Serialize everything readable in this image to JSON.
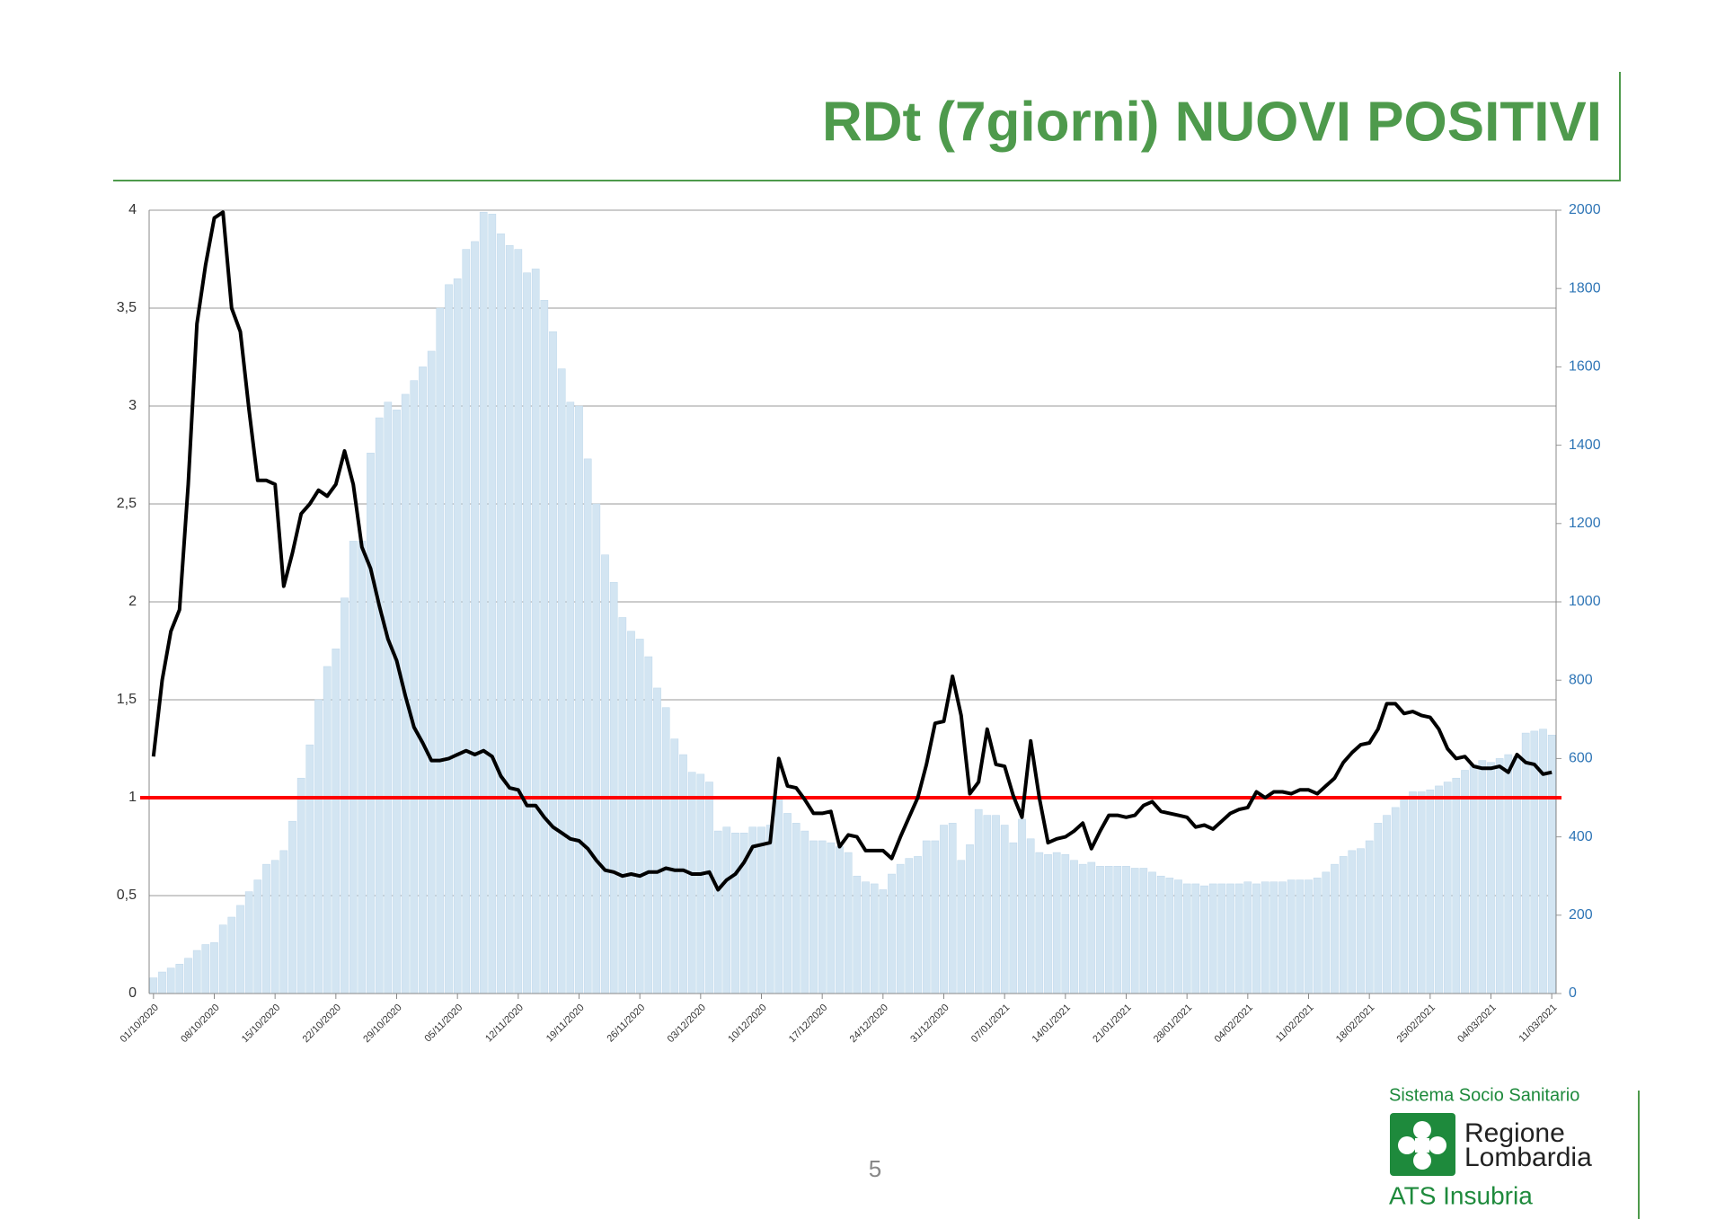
{
  "header": {
    "title": "RDt (7giorni) NUOVI POSITIVI"
  },
  "chart_data": {
    "type": "bar",
    "categories": [
      "01/10/2020",
      null,
      null,
      null,
      null,
      null,
      null,
      "08/10/2020",
      null,
      null,
      null,
      null,
      null,
      null,
      "15/10/2020",
      null,
      null,
      null,
      null,
      null,
      null,
      "22/10/2020",
      null,
      null,
      null,
      null,
      null,
      null,
      "29/10/2020",
      null,
      null,
      null,
      null,
      null,
      null,
      "05/11/2020",
      null,
      null,
      null,
      null,
      null,
      null,
      "12/11/2020",
      null,
      null,
      null,
      null,
      null,
      null,
      "19/11/2020",
      null,
      null,
      null,
      null,
      null,
      null,
      "26/11/2020",
      null,
      null,
      null,
      null,
      null,
      null,
      "03/12/2020",
      null,
      null,
      null,
      null,
      null,
      null,
      "10/12/2020",
      null,
      null,
      null,
      null,
      null,
      null,
      "17/12/2020",
      null,
      null,
      null,
      null,
      null,
      null,
      "24/12/2020",
      null,
      null,
      null,
      null,
      null,
      null,
      "31/12/2020",
      null,
      null,
      null,
      null,
      null,
      null,
      "07/01/2021",
      null,
      null,
      null,
      null,
      null,
      null,
      "14/01/2021",
      null,
      null,
      null,
      null,
      null,
      null,
      "21/01/2021",
      null,
      null,
      null,
      null,
      null,
      null,
      "28/01/2021",
      null,
      null,
      null,
      null,
      null,
      null,
      "04/02/2021",
      null,
      null,
      null,
      null,
      null,
      null,
      "11/02/2021",
      null,
      null,
      null,
      null,
      null,
      null,
      "18/02/2021",
      null,
      null,
      null,
      null,
      null,
      null,
      "25/02/2021",
      null,
      null,
      null,
      null,
      null,
      null,
      "04/03/2021",
      null,
      null,
      null,
      null,
      null,
      null,
      "11/03/2021"
    ],
    "series": [
      {
        "type": "bar",
        "axis": "y2",
        "color": "#d3e5f2",
        "values": [
          40,
          55,
          65,
          75,
          90,
          110,
          125,
          130,
          175,
          195,
          225,
          260,
          290,
          330,
          340,
          365,
          440,
          550,
          635,
          750,
          835,
          880,
          1010,
          1155,
          1155,
          1380,
          1470,
          1510,
          1490,
          1530,
          1565,
          1600,
          1640,
          1750,
          1810,
          1825,
          1900,
          1920,
          1995,
          1990,
          1940,
          1910,
          1900,
          1840,
          1850,
          1770,
          1690,
          1595,
          1510,
          1500,
          1365,
          1250,
          1120,
          1050,
          960,
          925,
          905,
          860,
          780,
          730,
          650,
          610,
          565,
          560,
          540,
          415,
          425,
          410,
          410,
          425,
          425,
          430,
          500,
          460,
          435,
          415,
          390,
          390,
          385,
          375,
          360,
          300,
          285,
          280,
          265,
          305,
          330,
          345,
          350,
          390,
          390,
          430,
          435,
          340,
          380,
          470,
          455,
          455,
          430,
          385,
          445,
          395,
          360,
          355,
          360,
          355,
          340,
          330,
          335,
          325,
          325,
          325,
          325,
          320,
          320,
          310,
          300,
          295,
          290,
          280,
          280,
          275,
          280,
          280,
          280,
          280,
          285,
          280,
          285,
          285,
          285,
          290,
          290,
          290,
          295,
          310,
          330,
          350,
          365,
          370,
          390,
          435,
          455,
          475,
          500,
          515,
          515,
          520,
          530,
          540,
          550,
          570,
          585,
          595,
          590,
          600,
          610,
          605,
          665,
          670,
          675,
          660
        ]
      },
      {
        "type": "line",
        "color": "#000000",
        "values": [
          1.21,
          1.6,
          1.85,
          1.96,
          2.6,
          3.42,
          3.72,
          3.96,
          3.99,
          3.5,
          3.38,
          2.98,
          2.62,
          2.62,
          2.6,
          2.08,
          2.25,
          2.45,
          2.5,
          2.57,
          2.54,
          2.6,
          2.77,
          2.6,
          2.28,
          2.17,
          1.98,
          1.81,
          1.7,
          1.52,
          1.36,
          1.28,
          1.19,
          1.19,
          1.2,
          1.22,
          1.24,
          1.22,
          1.24,
          1.21,
          1.11,
          1.05,
          1.04,
          0.96,
          0.96,
          0.9,
          0.85,
          0.82,
          0.79,
          0.78,
          0.74,
          0.68,
          0.63,
          0.62,
          0.6,
          0.61,
          0.6,
          0.62,
          0.62,
          0.64,
          0.63,
          0.63,
          0.61,
          0.61,
          0.62,
          0.53,
          0.58,
          0.61,
          0.67,
          0.75,
          0.76,
          0.77,
          1.2,
          1.06,
          1.05,
          0.99,
          0.92,
          0.92,
          0.93,
          0.75,
          0.81,
          0.8,
          0.73,
          0.73,
          0.73,
          0.69,
          0.8,
          0.9,
          1.0,
          1.17,
          1.38,
          1.39,
          1.62,
          1.42,
          1.02,
          1.08,
          1.35,
          1.17,
          1.16,
          1.01,
          0.9,
          1.29,
          1.0,
          0.77,
          0.79,
          0.8,
          0.83,
          0.87,
          0.74,
          0.83,
          0.91,
          0.91,
          0.9,
          0.91,
          0.96,
          0.98,
          0.93,
          0.92,
          0.91,
          0.9,
          0.85,
          0.86,
          0.84,
          0.88,
          0.92,
          0.94,
          0.95,
          1.03,
          1.0,
          1.03,
          1.03,
          1.02,
          1.04,
          1.04,
          1.02,
          1.06,
          1.1,
          1.18,
          1.23,
          1.27,
          1.28,
          1.35,
          1.48,
          1.48,
          1.43,
          1.44,
          1.42,
          1.41,
          1.35,
          1.25,
          1.2,
          1.21,
          1.16,
          1.15,
          1.15,
          1.16,
          1.13,
          1.22,
          1.18,
          1.17,
          1.12,
          1.13
        ]
      }
    ],
    "ylim": [
      0,
      4
    ],
    "yticks": [
      0,
      {
        "value": 0.5,
        "label": "0,5"
      },
      1,
      {
        "value": 1.5,
        "label": "1,5"
      },
      2,
      {
        "value": 2.5,
        "label": "2,5"
      },
      3,
      {
        "value": 3.5,
        "label": "3,5"
      },
      4
    ],
    "y2lim": [
      0,
      2000
    ],
    "y2ticks": [
      0,
      200,
      400,
      600,
      800,
      1000,
      1200,
      1400,
      1600,
      1800,
      2000
    ],
    "grid": true,
    "threshold": {
      "value": 1,
      "color": "#ff0000"
    }
  },
  "footer": {
    "page_number": "5",
    "logo": {
      "top": "Sistema Socio Sanitario",
      "line1": "Regione",
      "line2": "Lombardia",
      "bottom": "ATS Insubria"
    }
  }
}
